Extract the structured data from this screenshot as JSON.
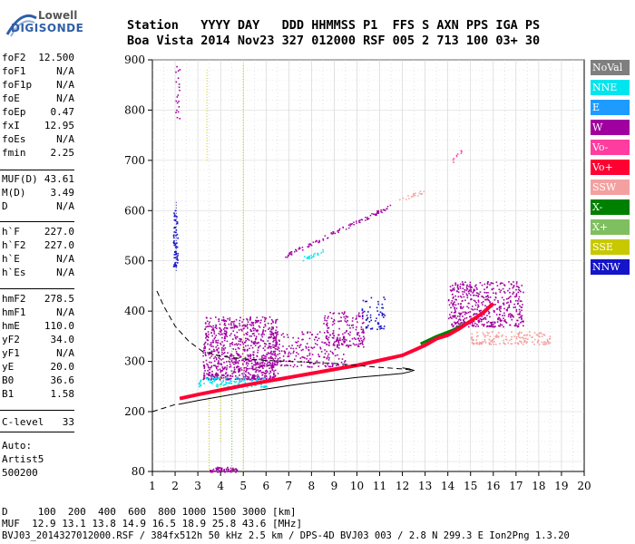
{
  "logo": {
    "line1": "Lowell",
    "line2": "DIGISONDE"
  },
  "header": {
    "row1": "Station   YYYY DAY   DDD HHMMSS P1  FFS S AXN PPS IGA PS",
    "row2": "Boa Vista 2014 Nov23 327 012000 RSF 005 2 713 100 03+ 30"
  },
  "params": [
    {
      "name": "foF2",
      "value": "12.500"
    },
    {
      "name": "foF1",
      "value": "N/A"
    },
    {
      "name": "foF1p",
      "value": "N/A"
    },
    {
      "name": "foE",
      "value": "N/A"
    },
    {
      "name": "foEp",
      "value": "0.47"
    },
    {
      "name": "fxI",
      "value": "12.95"
    },
    {
      "name": "foEs",
      "value": "N/A"
    },
    {
      "name": "fmin",
      "value": "2.25"
    },
    {
      "name": "MUF(D)",
      "value": "43.61"
    },
    {
      "name": "M(D)",
      "value": "3.49"
    },
    {
      "name": "D",
      "value": "N/A"
    },
    {
      "name": "h`F",
      "value": "227.0"
    },
    {
      "name": "h`F2",
      "value": "227.0"
    },
    {
      "name": "h`E",
      "value": "N/A"
    },
    {
      "name": "h`Es",
      "value": "N/A"
    },
    {
      "name": "hmF2",
      "value": "278.5"
    },
    {
      "name": "hmF1",
      "value": "N/A"
    },
    {
      "name": "hmE",
      "value": "110.0"
    },
    {
      "name": "yF2",
      "value": "34.0"
    },
    {
      "name": "yF1",
      "value": "N/A"
    },
    {
      "name": "yE",
      "value": "20.0"
    },
    {
      "name": "B0",
      "value": "36.6"
    },
    {
      "name": "B1",
      "value": "1.58"
    },
    {
      "name": "C-level",
      "value": "33"
    }
  ],
  "auto": {
    "line1": "Auto:",
    "line2": "Artist5",
    "line3": "500200"
  },
  "legend": [
    {
      "label": "NoVal",
      "color": "#7f7f7f"
    },
    {
      "label": "NNE",
      "color": "#00e5ee"
    },
    {
      "label": "E",
      "color": "#1e9bff"
    },
    {
      "label": "W",
      "color": "#a000a0"
    },
    {
      "label": "Vo-",
      "color": "#ff3ca0"
    },
    {
      "label": "Vo+",
      "color": "#ff0033"
    },
    {
      "label": "SSW",
      "color": "#f4a0a0"
    },
    {
      "label": "X-",
      "color": "#008000"
    },
    {
      "label": "X+",
      "color": "#7fbf5f"
    },
    {
      "label": "SSE",
      "color": "#c8c800"
    },
    {
      "label": "NNW",
      "color": "#1414c8"
    }
  ],
  "footer": {
    "d_row": "D     100  200  400  600  800 1000 1500 3000 [km]",
    "muf_row": "MUF  12.9 13.1 13.8 14.9 16.5 18.9 25.8 43.6 [MHz]",
    "file_row": "BVJ03_2014327012000.RSF / 384fx512h 50 kHz 2.5 km / DPS-4D BVJ03 003 / 2.8 N 299.3 E Ion2Png 1.3.20"
  },
  "chart_data": {
    "type": "scatter",
    "xlim": [
      1,
      20
    ],
    "ylim": [
      80,
      900
    ],
    "xticks": [
      "1",
      "2",
      "3",
      "4",
      "5",
      "6",
      "7",
      "8",
      "9",
      "10",
      "11",
      "12",
      "13",
      "14",
      "15",
      "16",
      "17",
      "18",
      "19",
      "20"
    ],
    "yticks": [
      "80",
      "200",
      "300",
      "400",
      "500",
      "600",
      "700",
      "800",
      "900"
    ],
    "grid": true,
    "trace_o": {
      "x": [
        2.2,
        3,
        4,
        5,
        6,
        7,
        8,
        9,
        10,
        11,
        12,
        12.5,
        13,
        13.5,
        14,
        14.5,
        15,
        15.5,
        16
      ],
      "y": [
        226,
        234,
        243,
        252,
        260,
        268,
        276,
        284,
        292,
        302,
        312,
        322,
        332,
        345,
        352,
        365,
        380,
        395,
        415
      ]
    },
    "trace_x": {
      "x": [
        12.8,
        13.5,
        14.2,
        15,
        15.6,
        16
      ],
      "y": [
        335,
        350,
        362,
        380,
        398,
        415
      ]
    },
    "profile_solid": {
      "x": [
        2.2,
        3,
        4,
        5,
        6,
        7,
        8,
        9,
        10,
        11,
        12,
        12.3,
        12.5,
        12.3,
        12
      ],
      "y": [
        215,
        222,
        230,
        238,
        245,
        252,
        258,
        263,
        268,
        272,
        276,
        279,
        282,
        285,
        287
      ]
    },
    "profile_dashed": {
      "x": [
        1.2,
        1.5,
        2,
        2.6,
        3.2,
        4,
        5,
        6,
        7,
        8,
        9,
        10,
        11,
        12,
        12.5
      ],
      "y": [
        440,
        410,
        370,
        340,
        320,
        310,
        305,
        302,
        300,
        298,
        296,
        292,
        288,
        285,
        282
      ]
    },
    "profile_bottom": {
      "x": [
        1,
        1.5,
        2,
        2.2
      ],
      "y": [
        200,
        207,
        214,
        215
      ]
    },
    "clusters": [
      {
        "x": [
          3.2,
          6.5
        ],
        "y": [
          265,
          390
        ],
        "color": "#a000a0",
        "n": 900
      },
      {
        "x": [
          6,
          9.5
        ],
        "y": [
          290,
          360
        ],
        "color": "#a000a0",
        "n": 250
      },
      {
        "x": [
          8.5,
          10.3
        ],
        "y": [
          330,
          400
        ],
        "color": "#a000a0",
        "n": 150
      },
      {
        "x": [
          3,
          6
        ],
        "y": [
          250,
          270
        ],
        "color": "#00e5ee",
        "n": 120
      },
      {
        "x": [
          14,
          17.3
        ],
        "y": [
          370,
          460
        ],
        "color": "#a000a0",
        "n": 500
      },
      {
        "x": [
          15,
          18.5
        ],
        "y": [
          335,
          360
        ],
        "color": "#f4a0a0",
        "n": 160
      },
      {
        "x": [
          10.2,
          11.2
        ],
        "y": [
          365,
          430
        ],
        "color": "#1414c8",
        "n": 60
      },
      {
        "x": [
          1.9,
          2.1
        ],
        "y": [
          490,
          610
        ],
        "color": "#1414c8",
        "n": 60
      },
      {
        "x": [
          2.0,
          2.2
        ],
        "y": [
          780,
          890
        ],
        "color": "#a000a0",
        "n": 20
      },
      {
        "x": [
          3.5,
          4.7
        ],
        "y": [
          80,
          90
        ],
        "color": "#a000a0",
        "n": 60
      }
    ],
    "lines_sparse": [
      {
        "x": [
          6.8,
          11.5
        ],
        "y": [
          510,
          610
        ],
        "color": "#a000a0",
        "n": 110
      },
      {
        "x": [
          7.6,
          8.5
        ],
        "y": [
          505,
          520
        ],
        "color": "#00e5ee",
        "n": 25
      },
      {
        "x": [
          11.8,
          13
        ],
        "y": [
          620,
          640
        ],
        "color": "#f4a0a0",
        "n": 20
      },
      {
        "x": [
          14.2,
          14.6
        ],
        "y": [
          700,
          720
        ],
        "color": "#ff3ca0",
        "n": 10
      }
    ]
  }
}
